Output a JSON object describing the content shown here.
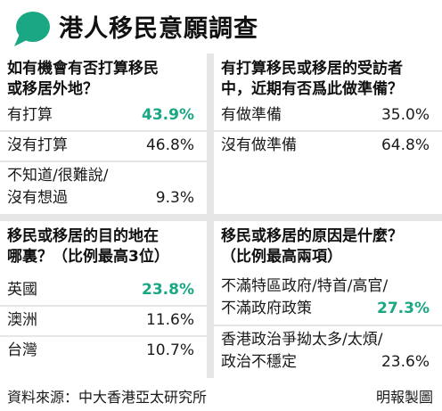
{
  "title": "港人移民意願調查",
  "colors": {
    "accent": "#1aa784",
    "divider": "#e6e6e6",
    "text": "#1a1a1a"
  },
  "icon": "speech-bubble-icon",
  "panels": [
    {
      "question": [
        "如有機會有否打算移民",
        "或移居外地？"
      ],
      "rows": [
        {
          "label": [
            "有打算"
          ],
          "value": "43.9%",
          "highlight": true
        },
        {
          "label": [
            "沒有打算"
          ],
          "value": "46.8%",
          "highlight": false
        },
        {
          "label": [
            "不知道/很難說/",
            "沒有想過"
          ],
          "value": "9.3%",
          "highlight": false
        }
      ]
    },
    {
      "question": [
        "有打算移民或移居的受訪者",
        "中，近期有否爲此做準備？"
      ],
      "rows": [
        {
          "label": [
            "有做準備"
          ],
          "value": "35.0%",
          "highlight": false
        },
        {
          "label": [
            "沒有做準備"
          ],
          "value": "64.8%",
          "highlight": false
        }
      ]
    },
    {
      "question": [
        "移民或移居的目的地在",
        "哪裏？（比例最高3位）"
      ],
      "rows": [
        {
          "label": [
            "英國"
          ],
          "value": "23.8%",
          "highlight": true
        },
        {
          "label": [
            "澳洲"
          ],
          "value": "11.6%",
          "highlight": false
        },
        {
          "label": [
            "台灣"
          ],
          "value": "10.7%",
          "highlight": false
        }
      ]
    },
    {
      "question": [
        "移民或移居的原因是什麼？",
        "（比例最高兩項）"
      ],
      "rows": [
        {
          "label": [
            "不滿特區政府/特首/高官/",
            "不滿政府政策"
          ],
          "value": "27.3%",
          "highlight": true
        },
        {
          "label": [
            "香港政治爭拗太多/太煩/",
            "政治不穩定"
          ],
          "value": "23.6%",
          "highlight": false
        }
      ]
    }
  ],
  "footer": {
    "source": "資料來源：中大香港亞太研究所",
    "credit": "明報製圖"
  }
}
